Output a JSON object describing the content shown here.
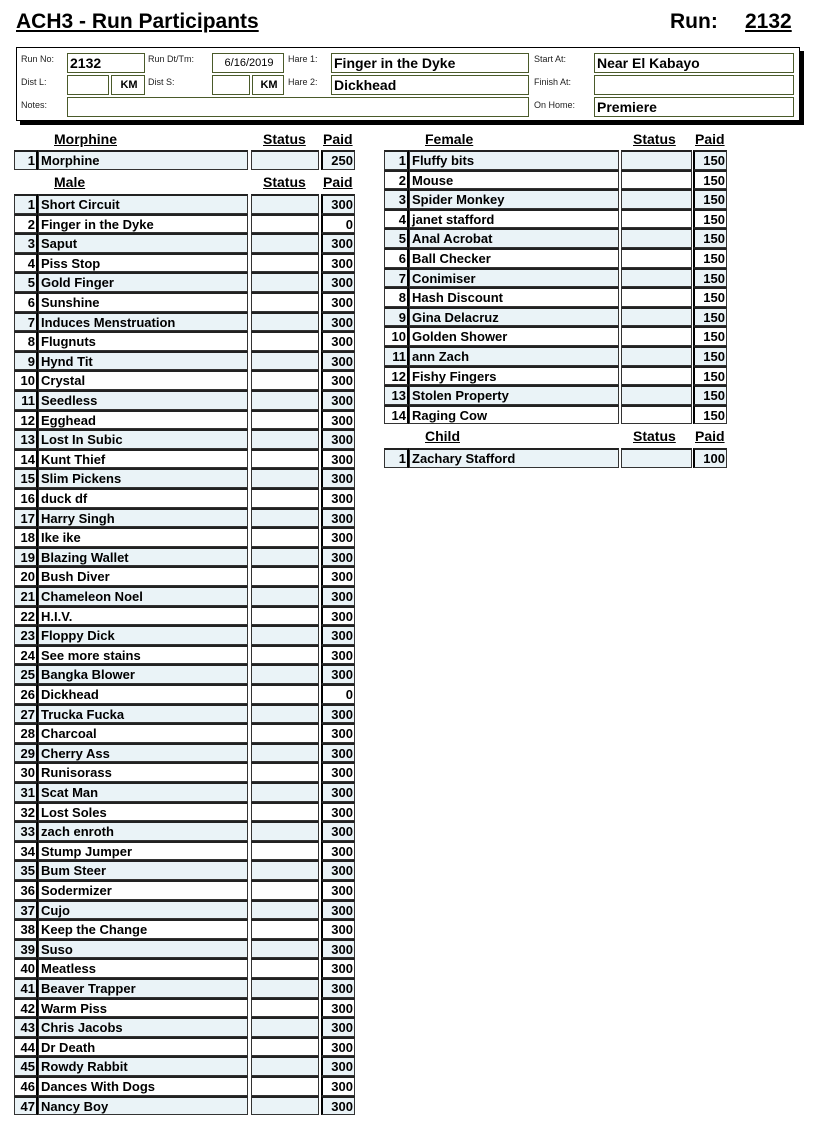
{
  "title": "ACH3 - Run Participants",
  "run_label": "Run:",
  "run_number": "2132",
  "info": {
    "run_no_label": "Run No:",
    "run_no": "2132",
    "run_dt_label": "Run Dt/Tm:",
    "run_dt": "6/16/2019",
    "hare1_label": "Hare 1:",
    "hare1": "Finger in the Dyke",
    "hare2_label": "Hare 2:",
    "hare2": "Dickhead",
    "start_label": "Start At:",
    "start": "Near El Kabayo",
    "finish_label": "Finish At:",
    "finish": "",
    "onhome_label": "On Home:",
    "onhome": "Premiere",
    "distl_label": "Dist L:",
    "dists_label": "Dist S:",
    "km": "KM",
    "notes_label": "Notes:",
    "notes": ""
  },
  "columns": {
    "status": "Status",
    "paid": "Paid"
  },
  "morphine": {
    "title": "Morphine",
    "rows": [
      [
        "1",
        "Morphine",
        "250"
      ]
    ]
  },
  "male": {
    "title": "Male",
    "rows": [
      [
        "1",
        "Short Circuit",
        "300"
      ],
      [
        "2",
        "Finger in the Dyke",
        "0"
      ],
      [
        "3",
        "Saput",
        "300"
      ],
      [
        "4",
        "Piss Stop",
        "300"
      ],
      [
        "5",
        "Gold Finger",
        "300"
      ],
      [
        "6",
        "Sunshine",
        "300"
      ],
      [
        "7",
        "Induces Menstruation",
        "300"
      ],
      [
        "8",
        "Flugnuts",
        "300"
      ],
      [
        "9",
        "Hynd Tit",
        "300"
      ],
      [
        "10",
        "Crystal",
        "300"
      ],
      [
        "11",
        "Seedless",
        "300"
      ],
      [
        "12",
        "Egghead",
        "300"
      ],
      [
        "13",
        "Lost In Subic",
        "300"
      ],
      [
        "14",
        "Kunt Thief",
        "300"
      ],
      [
        "15",
        "Slim Pickens",
        "300"
      ],
      [
        "16",
        "duck df",
        "300"
      ],
      [
        "17",
        "Harry Singh",
        "300"
      ],
      [
        "18",
        "Ike ike",
        "300"
      ],
      [
        "19",
        "Blazing Wallet",
        "300"
      ],
      [
        "20",
        "Bush Diver",
        "300"
      ],
      [
        "21",
        "Chameleon Noel",
        "300"
      ],
      [
        "22",
        "H.I.V.",
        "300"
      ],
      [
        "23",
        "Floppy Dick",
        "300"
      ],
      [
        "24",
        "See more stains",
        "300"
      ],
      [
        "25",
        "Bangka  Blower",
        "300"
      ],
      [
        "26",
        "Dickhead",
        "0"
      ],
      [
        "27",
        "Trucka Fucka",
        "300"
      ],
      [
        "28",
        "Charcoal",
        "300"
      ],
      [
        "29",
        "Cherry Ass",
        "300"
      ],
      [
        "30",
        "Runisorass",
        "300"
      ],
      [
        "31",
        "Scat Man",
        "300"
      ],
      [
        "32",
        "Lost Soles",
        "300"
      ],
      [
        "33",
        "zach enroth",
        "300"
      ],
      [
        "34",
        "Stump Jumper",
        "300"
      ],
      [
        "35",
        "Bum Steer",
        "300"
      ],
      [
        "36",
        "Sodermizer",
        "300"
      ],
      [
        "37",
        "Cujo",
        "300"
      ],
      [
        "38",
        "Keep the Change",
        "300"
      ],
      [
        "39",
        "Suso",
        "300"
      ],
      [
        "40",
        "Meatless",
        "300"
      ],
      [
        "41",
        "Beaver Trapper",
        "300"
      ],
      [
        "42",
        "Warm Piss",
        "300"
      ],
      [
        "43",
        "Chris Jacobs",
        "300"
      ],
      [
        "44",
        "Dr Death",
        "300"
      ],
      [
        "45",
        "Rowdy Rabbit",
        "300"
      ],
      [
        "46",
        "Dances With Dogs",
        "300"
      ],
      [
        "47",
        "Nancy Boy",
        "300"
      ]
    ]
  },
  "female": {
    "title": "Female",
    "rows": [
      [
        "1",
        "Fluffy bits",
        "150"
      ],
      [
        "2",
        "Mouse",
        "150"
      ],
      [
        "3",
        "Spider Monkey",
        "150"
      ],
      [
        "4",
        "janet stafford",
        "150"
      ],
      [
        "5",
        "Anal Acrobat",
        "150"
      ],
      [
        "6",
        "Ball Checker",
        "150"
      ],
      [
        "7",
        "Conimiser",
        "150"
      ],
      [
        "8",
        "Hash Discount",
        "150"
      ],
      [
        "9",
        "Gina Delacruz",
        "150"
      ],
      [
        "10",
        "Golden Shower",
        "150"
      ],
      [
        "11",
        "ann Zach",
        "150"
      ],
      [
        "12",
        "Fishy Fingers",
        "150"
      ],
      [
        "13",
        "Stolen Property",
        "150"
      ],
      [
        "14",
        "Raging Cow",
        "150"
      ]
    ]
  },
  "child": {
    "title": "Child",
    "rows": [
      [
        "1",
        "Zachary Stafford",
        "100"
      ]
    ]
  }
}
